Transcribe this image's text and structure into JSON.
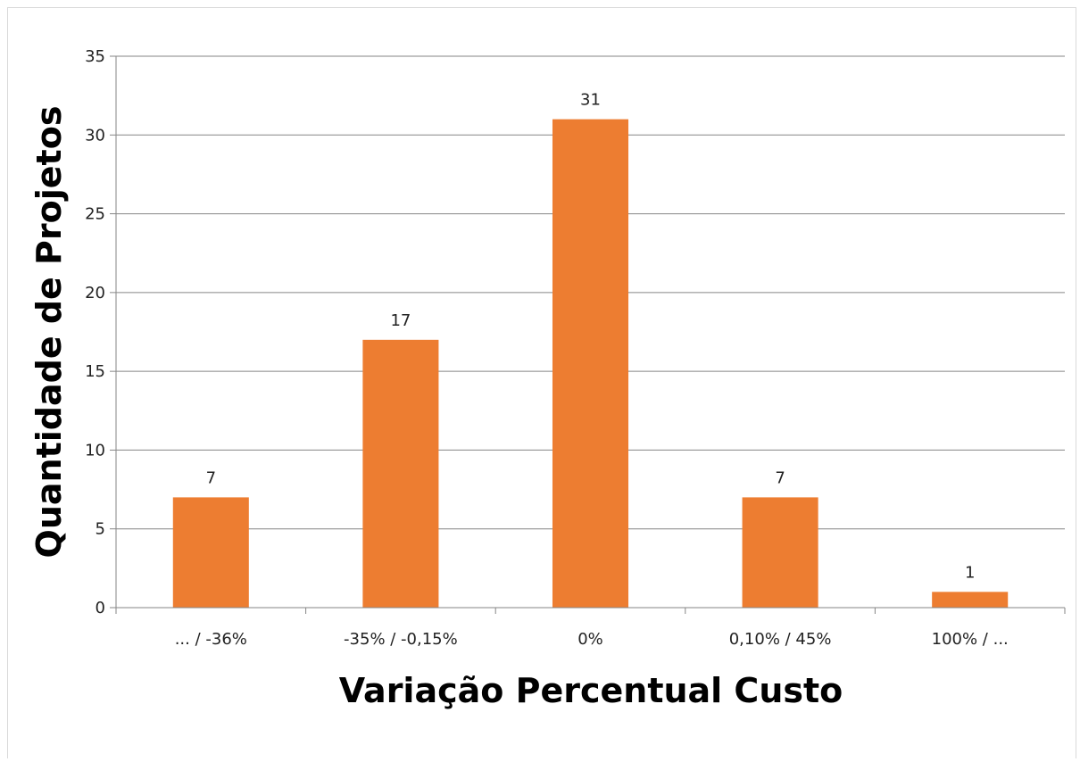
{
  "chart_data": {
    "type": "bar",
    "title": "",
    "categories": [
      "... / -36%",
      "-35% / -0,15%",
      "0%",
      "0,10% / 45%",
      "100% / ..."
    ],
    "values": [
      7,
      17,
      31,
      7,
      1
    ],
    "data_labels": [
      "7",
      "17",
      "31",
      "7",
      "1"
    ],
    "xlabel": "Variação Percentual Custo",
    "ylabel": "Quantidade de Projetos",
    "ylim": [
      0,
      35
    ],
    "yticks": [
      0,
      5,
      10,
      15,
      20,
      25,
      30,
      35
    ],
    "grid": true,
    "legend": "none",
    "bar_color": "#ED7D31"
  }
}
